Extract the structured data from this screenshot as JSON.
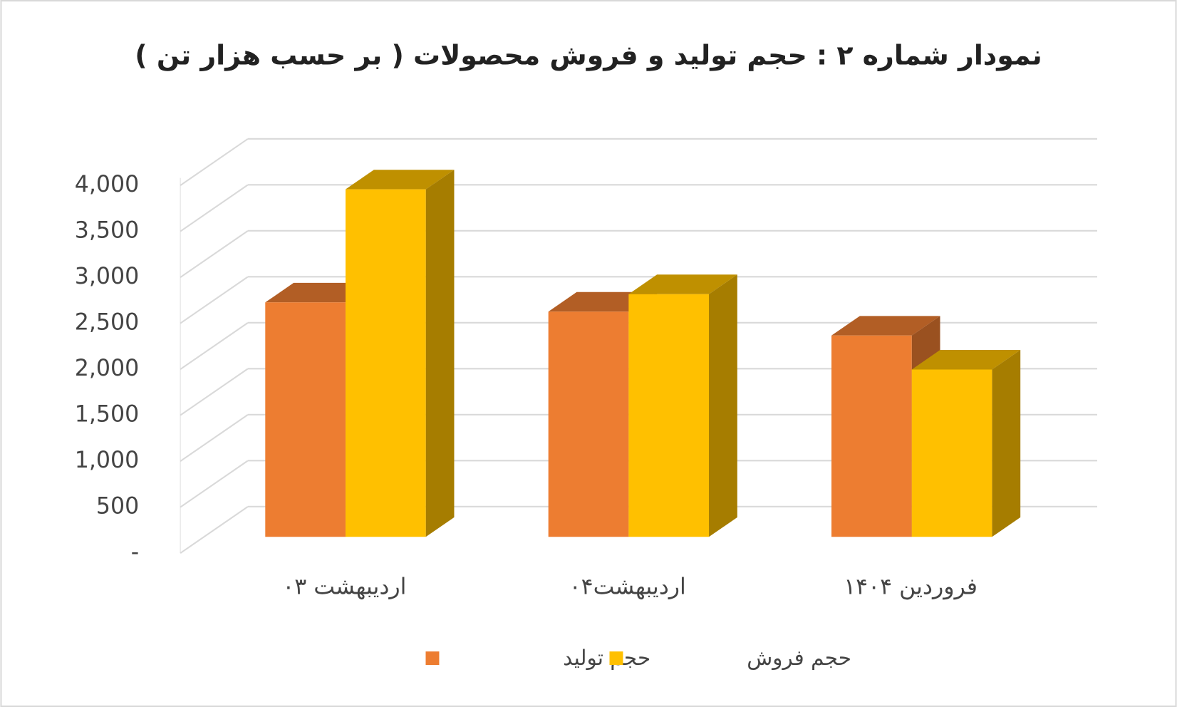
{
  "chart_data": {
    "type": "bar3d",
    "title": "نمودار شماره ۲ : حجم  تولید و فروش محصولات ( بر حسب هزار تن )",
    "categories": [
      "اردیبهشت ۰۳",
      "اردیبهشت۰۴",
      "فروردین ۱۴۰۴"
    ],
    "series": [
      {
        "name": "حجم تولید",
        "color": "#ED7D31",
        "values": [
          2550,
          2450,
          2190
        ]
      },
      {
        "name": "حجم فروش",
        "color": "#FFC000",
        "values": [
          3780,
          2640,
          1820
        ]
      }
    ],
    "ylim": [
      0,
      4000
    ],
    "yticks": [
      {
        "value": 0,
        "label": "-"
      },
      500,
      {
        "value": 1000,
        "label": "1,000"
      },
      {
        "value": 1500,
        "label": "1,500"
      },
      {
        "value": 2000,
        "label": "2,000"
      },
      {
        "value": 2500,
        "label": "2,500"
      },
      {
        "value": 3000,
        "label": "3,000"
      },
      {
        "value": 3500,
        "label": "3,500"
      },
      {
        "value": 4000,
        "label": "4,000"
      }
    ],
    "grid": true,
    "legend": "bottom"
  }
}
